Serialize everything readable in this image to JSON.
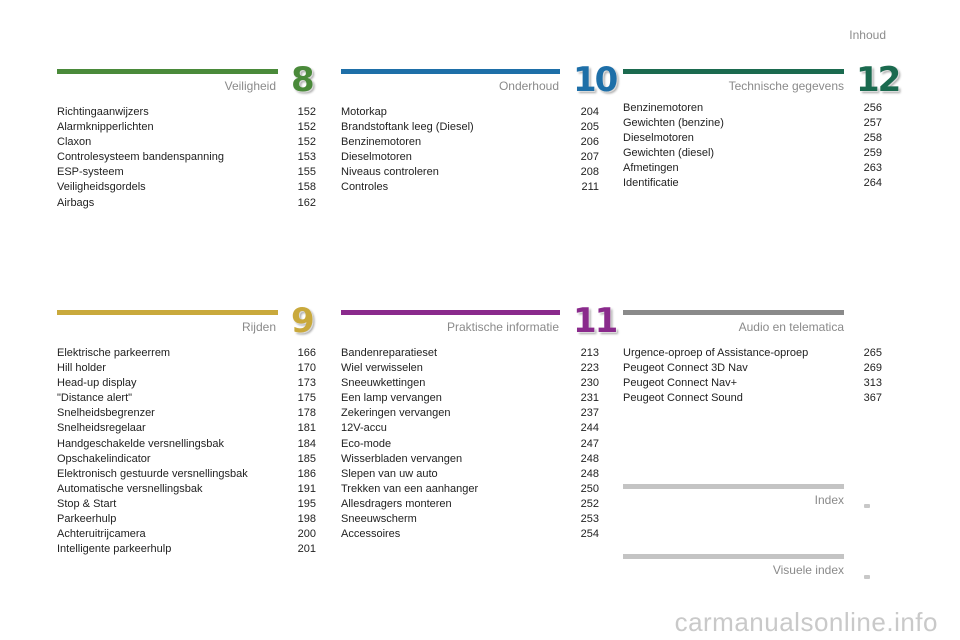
{
  "header": {
    "title": "Inhoud"
  },
  "sections": {
    "veiligheid": {
      "title": "Veiligheid",
      "number": "8",
      "color": "#4a8a3a",
      "items": [
        {
          "label": "Richtingaanwijzers",
          "page": "152"
        },
        {
          "label": "Alarmknipperlichten",
          "page": "152"
        },
        {
          "label": "Claxon",
          "page": "152"
        },
        {
          "label": "Controlesysteem bandenspanning",
          "page": "153"
        },
        {
          "label": "ESP-systeem",
          "page": "155"
        },
        {
          "label": "Veiligheidsgordels",
          "page": "158"
        },
        {
          "label": "Airbags",
          "page": "162"
        }
      ]
    },
    "onderhoud": {
      "title": "Onderhoud",
      "number": "10",
      "color": "#1e6fa8",
      "items": [
        {
          "label": "Motorkap",
          "page": "204"
        },
        {
          "label": "Brandstoftank leeg (Diesel)",
          "page": "205"
        },
        {
          "label": "Benzinemotoren",
          "page": "206"
        },
        {
          "label": "Dieselmotoren",
          "page": "207"
        },
        {
          "label": "Niveaus controleren",
          "page": "208"
        },
        {
          "label": "Controles",
          "page": "211"
        }
      ]
    },
    "technische": {
      "title": "Technische gegevens",
      "number": "12",
      "color": "#1b6a4f",
      "items": [
        {
          "label": "Benzinemotoren",
          "page": "256"
        },
        {
          "label": "Gewichten (benzine)",
          "page": "257"
        },
        {
          "label": "Dieselmotoren",
          "page": "258"
        },
        {
          "label": "Gewichten (diesel)",
          "page": "259"
        },
        {
          "label": "Afmetingen",
          "page": "263"
        },
        {
          "label": "Identificatie",
          "page": "264"
        }
      ]
    },
    "rijden": {
      "title": "Rijden",
      "number": "9",
      "color": "#c9a93c",
      "items": [
        {
          "label": "Elektrische parkeerrem",
          "page": "166"
        },
        {
          "label": "Hill holder",
          "page": "170"
        },
        {
          "label": "Head-up display",
          "page": "173"
        },
        {
          "label": "\"Distance alert\"",
          "page": "175"
        },
        {
          "label": "Snelheidsbegrenzer",
          "page": "178"
        },
        {
          "label": "Snelheidsregelaar",
          "page": "181"
        },
        {
          "label": "Handgeschakelde versnellingsbak",
          "page": "184"
        },
        {
          "label": "Opschakelindicator",
          "page": "185"
        },
        {
          "label": "Elektronisch gestuurde versnellingsbak",
          "page": "186"
        },
        {
          "label": "Automatische versnellingsbak",
          "page": "191"
        },
        {
          "label": "Stop & Start",
          "page": "195"
        },
        {
          "label": "Parkeerhulp",
          "page": "198"
        },
        {
          "label": "Achteruitrijcamera",
          "page": "200"
        },
        {
          "label": "Intelligente parkeerhulp",
          "page": "201"
        }
      ]
    },
    "praktische": {
      "title": "Praktische informatie",
      "number": "11",
      "color": "#8a2a8c",
      "items": [
        {
          "label": "Bandenreparatieset",
          "page": "213"
        },
        {
          "label": "Wiel verwisselen",
          "page": "223"
        },
        {
          "label": "Sneeuwkettingen",
          "page": "230"
        },
        {
          "label": "Een lamp vervangen",
          "page": "231"
        },
        {
          "label": "Zekeringen vervangen",
          "page": "237"
        },
        {
          "label": "12V-accu",
          "page": "244"
        },
        {
          "label": "Eco-mode",
          "page": "247"
        },
        {
          "label": "Wisserbladen vervangen",
          "page": "248"
        },
        {
          "label": "Slepen van uw auto",
          "page": "248"
        },
        {
          "label": "Trekken van een aanhanger",
          "page": "250"
        },
        {
          "label": "Allesdragers monteren",
          "page": "252"
        },
        {
          "label": "Sneeuwscherm",
          "page": "253"
        },
        {
          "label": "Accessoires",
          "page": "254"
        }
      ]
    },
    "audio": {
      "title": "Audio en telematica",
      "color": "#8a8a8a",
      "items": [
        {
          "label": "Urgence-oproep of Assistance-oproep",
          "page": "265"
        },
        {
          "label": "Peugeot Connect 3D Nav",
          "page": "269"
        },
        {
          "label": "Peugeot Connect Nav+",
          "page": "313"
        },
        {
          "label": "Peugeot Connect Sound",
          "page": "367"
        }
      ]
    },
    "index": {
      "title": "Index",
      "color": "#c4c4c4"
    },
    "visuele": {
      "title": "Visuele index",
      "color": "#c4c4c4"
    }
  },
  "watermark": "carmanualsonline.info"
}
